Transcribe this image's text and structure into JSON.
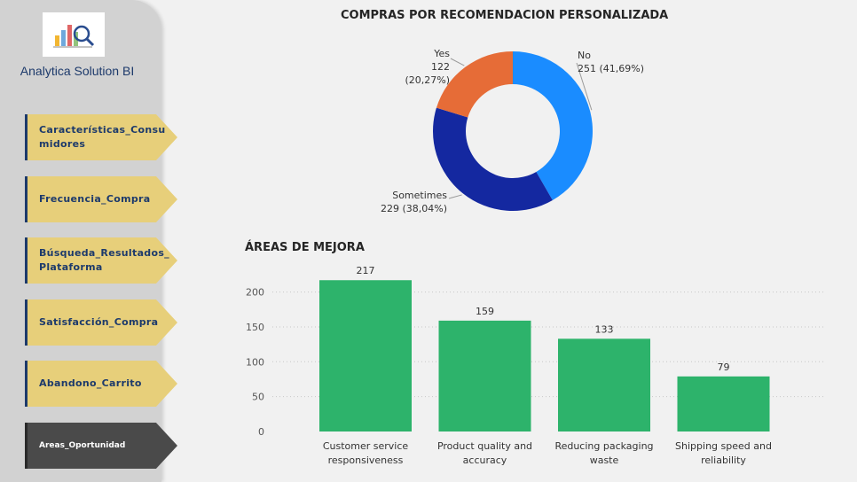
{
  "brand": {
    "name": "Analytica Solution BI"
  },
  "nav": [
    {
      "label": "Características_Consu midores",
      "active": false
    },
    {
      "label": "Frecuencia_Compra",
      "active": false
    },
    {
      "label": "Búsqueda_Resultados_ Plataforma",
      "active": false
    },
    {
      "label": "Satisfacción_Compra",
      "active": false
    },
    {
      "label": "Abandono_Carrito",
      "active": false
    },
    {
      "label": "Areas_Oportunidad",
      "active": true
    }
  ],
  "chart_data": [
    {
      "type": "pie",
      "title": "COMPRAS POR RECOMENDACION PERSONALIZADA",
      "slices": [
        {
          "label": "No",
          "value": 251,
          "display": "251 (41,69%)",
          "color": "#1a8cff"
        },
        {
          "label": "Sometimes",
          "value": 229,
          "display": "229 (38,04%)",
          "color": "#1428a0"
        },
        {
          "label": "Yes",
          "value": 122,
          "display": "122 (20,27%)",
          "color": "#e66c37"
        }
      ]
    },
    {
      "type": "bar",
      "title": "ÁREAS DE MEJORA",
      "categories": [
        "Customer service responsiveness",
        "Product quality and accuracy",
        "Reducing packaging waste",
        "Shipping speed and reliability"
      ],
      "category_lines": [
        [
          "Customer service",
          "responsiveness"
        ],
        [
          "Product quality and",
          "accuracy"
        ],
        [
          "Reducing packaging",
          "waste"
        ],
        [
          "Shipping speed and",
          "reliability"
        ]
      ],
      "values": [
        217,
        159,
        133,
        79
      ],
      "yticks": [
        0,
        50,
        100,
        150,
        200
      ],
      "ylim": [
        0,
        230
      ],
      "grid": true,
      "color": "#2db36b"
    }
  ]
}
